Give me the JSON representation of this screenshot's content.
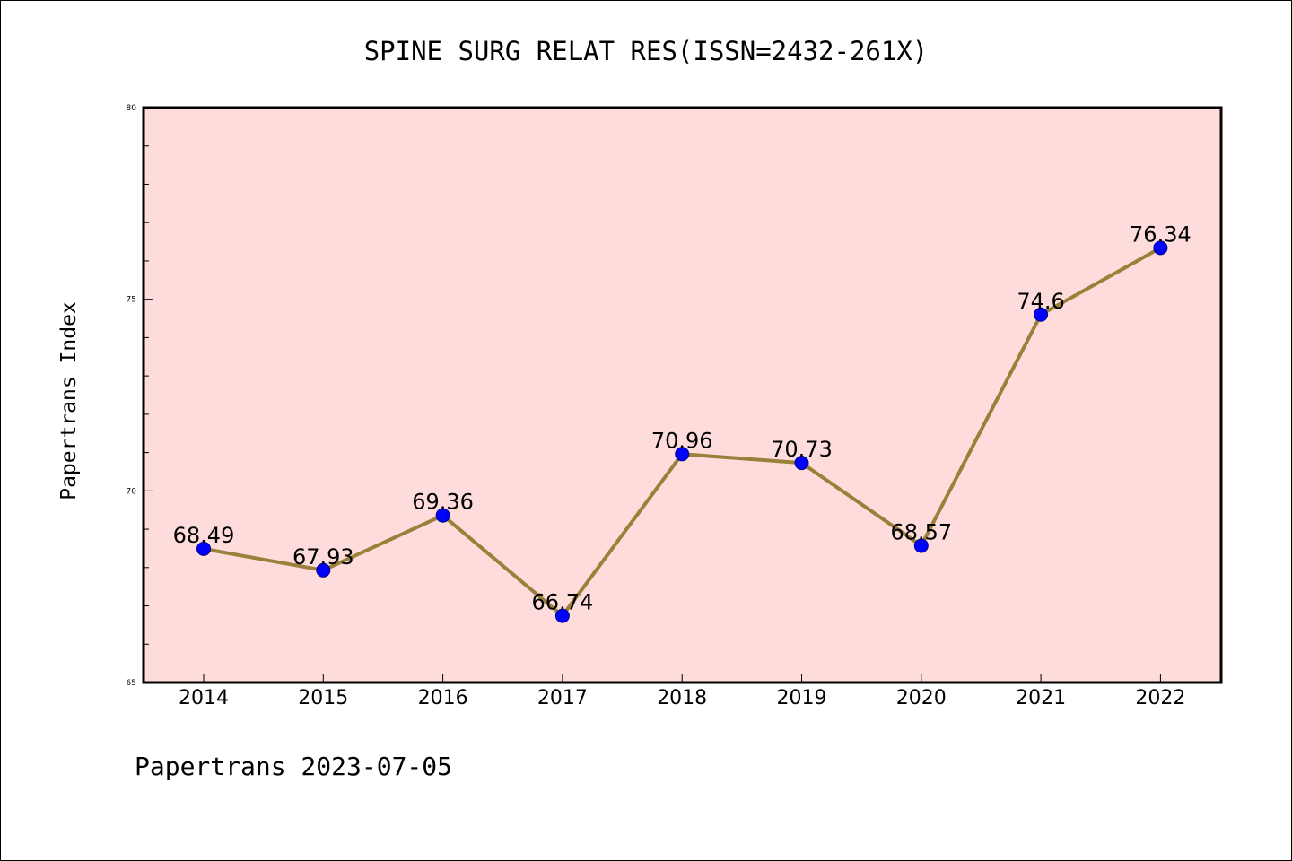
{
  "title": "SPINE SURG RELAT RES(ISSN=2432-261X)",
  "footer": "Papertrans 2023-07-05",
  "colors": {
    "plot_background": "#fddcdb",
    "line": "#9a8039",
    "marker_fill": "#0000ff",
    "marker_stroke": "#00008b",
    "axes": "#000000"
  },
  "chart_data": {
    "type": "line",
    "title": "SPINE SURG RELAT RES(ISSN=2432-261X)",
    "xlabel": "",
    "ylabel": "Papertrans Index",
    "categories": [
      "2014",
      "2015",
      "2016",
      "2017",
      "2018",
      "2019",
      "2020",
      "2021",
      "2022"
    ],
    "values": [
      68.49,
      67.93,
      69.36,
      66.74,
      70.96,
      70.73,
      68.57,
      74.6,
      76.34
    ],
    "data_labels": [
      "68.49",
      "67.93",
      "69.36",
      "66.74",
      "70.96",
      "70.73",
      "68.57",
      "74.6",
      "76.34"
    ],
    "ylim": [
      65,
      80
    ],
    "y_ticks": [
      65,
      70,
      75,
      80
    ],
    "y_tick_labels": [
      "65",
      "70",
      "75",
      "80"
    ],
    "y_minor_step": 1,
    "grid": false,
    "legend": "none"
  }
}
